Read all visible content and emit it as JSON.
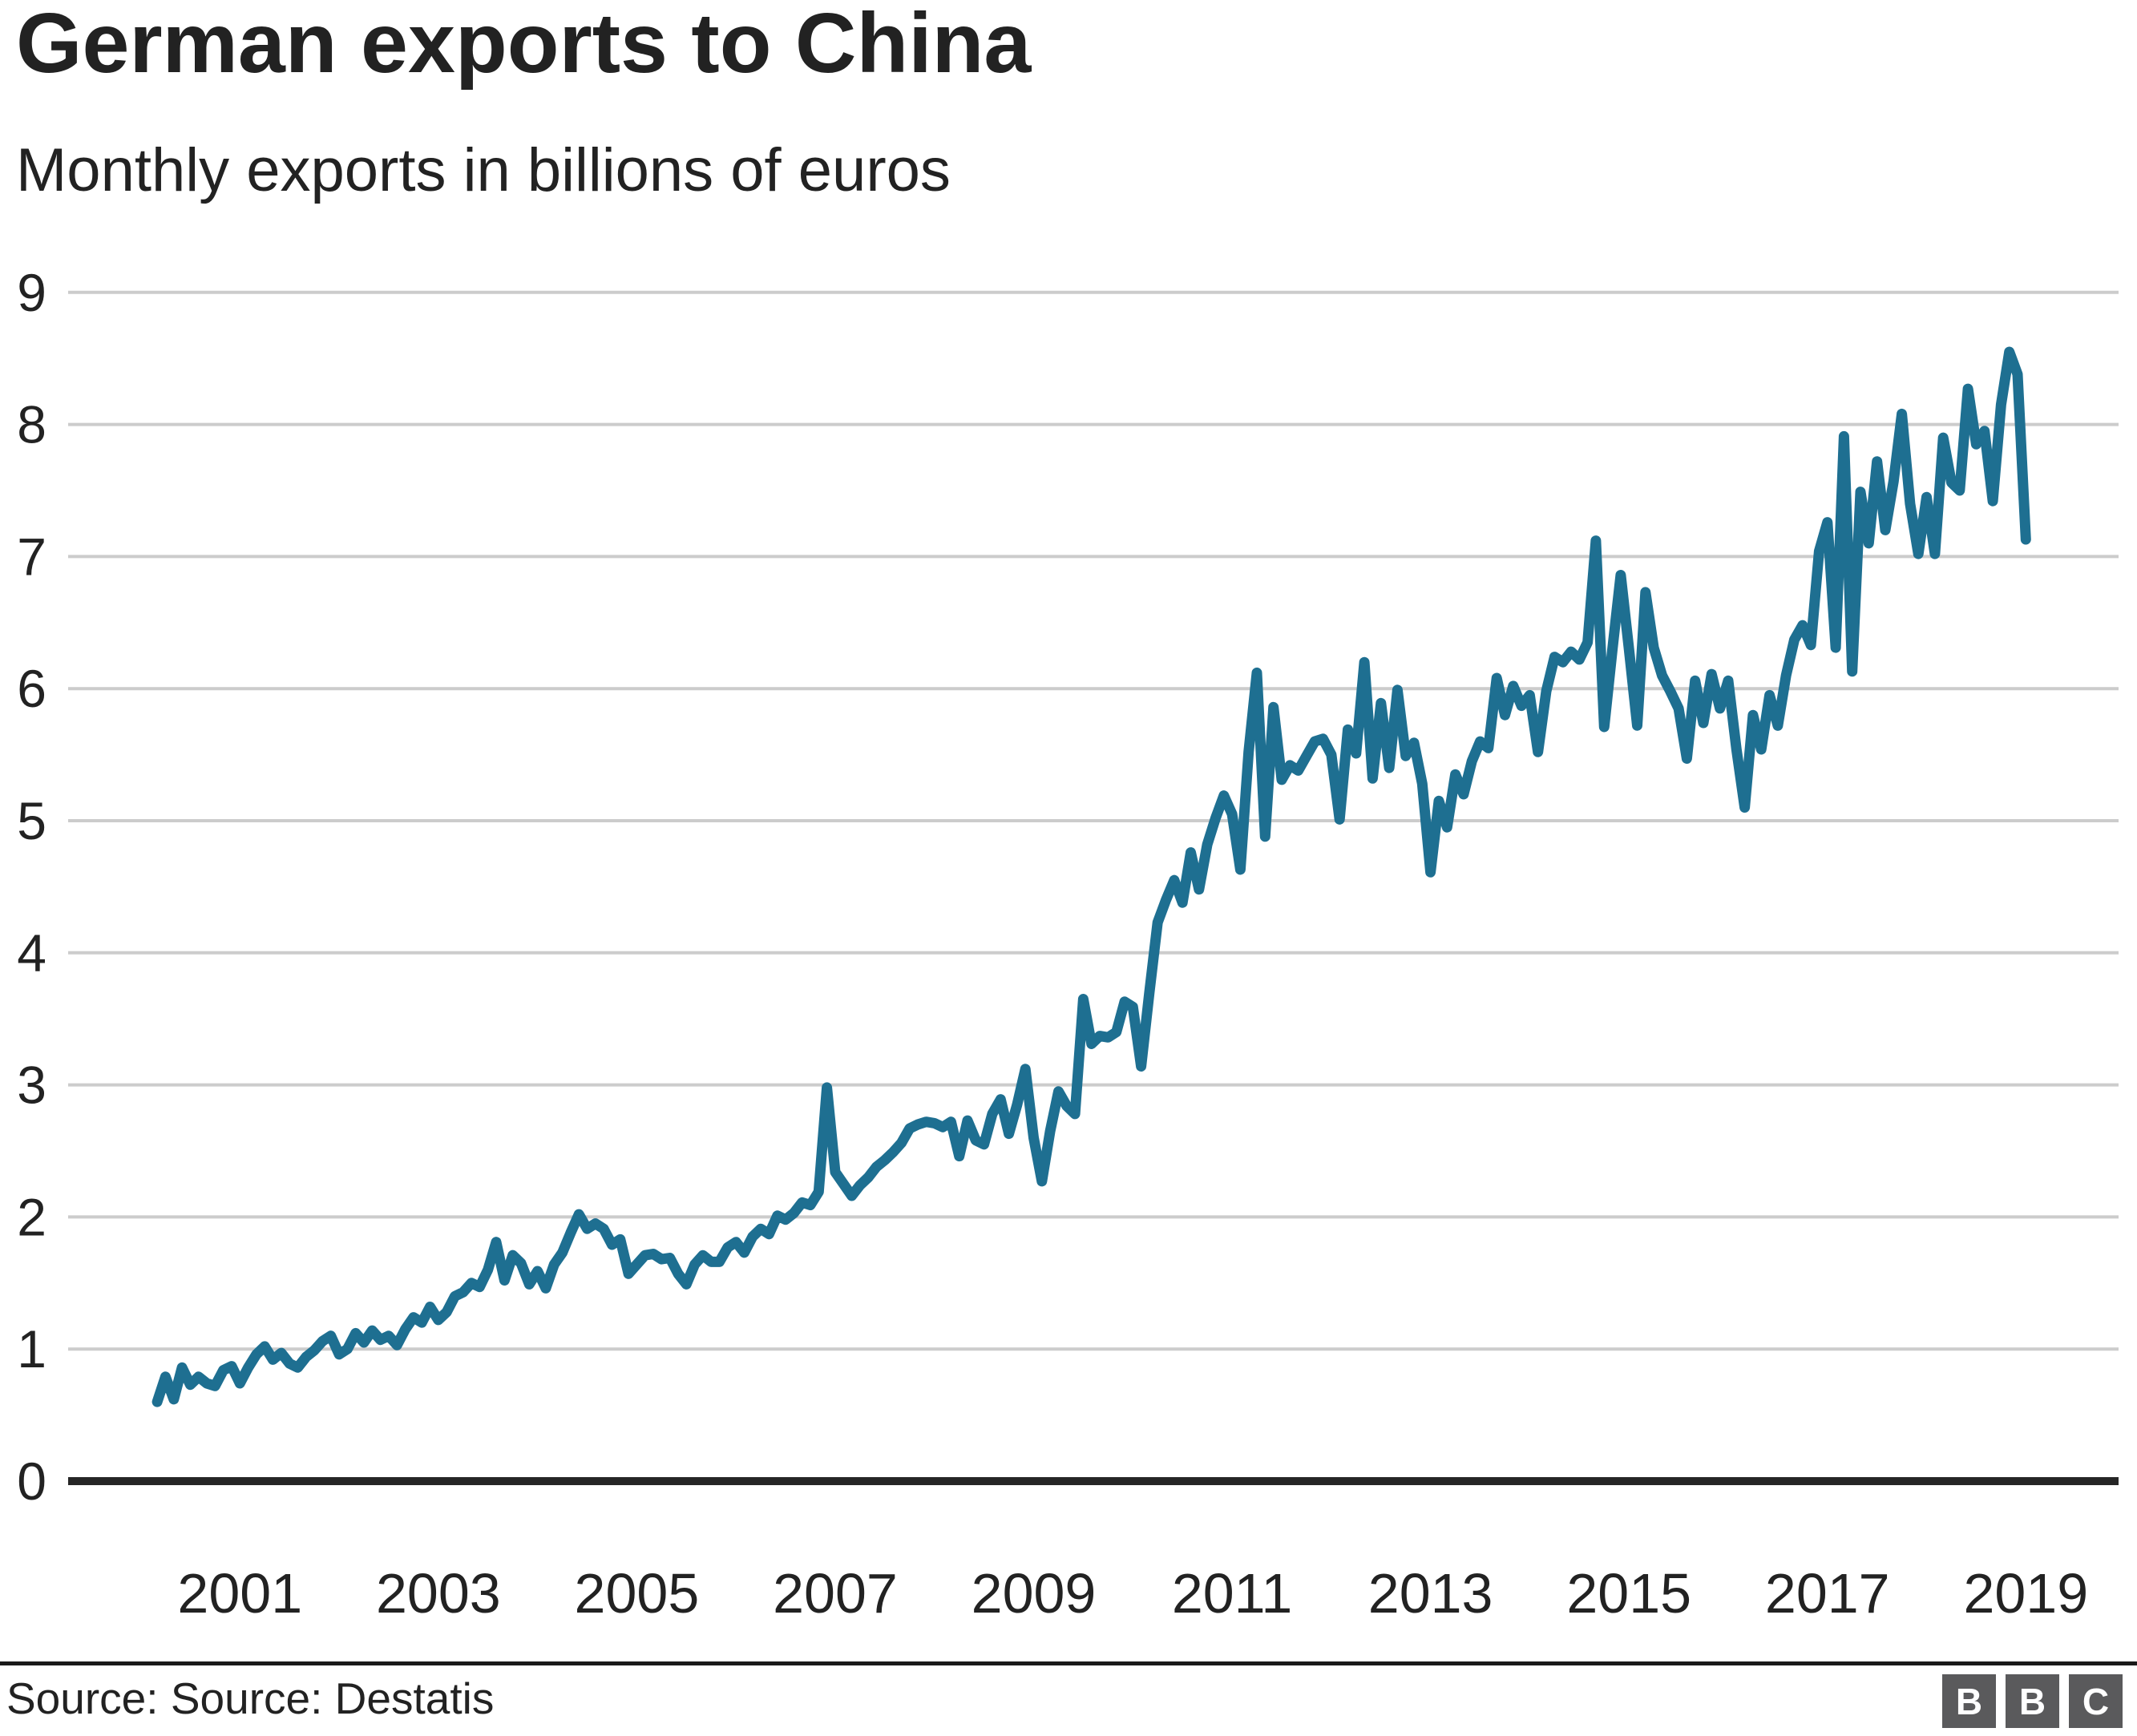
{
  "header": {
    "title": "German exports to China",
    "subtitle": "Monthly exports in billions of euros"
  },
  "footer": {
    "source_label": "Source: Source: Destatis",
    "logo_letters": [
      "B",
      "B",
      "C"
    ]
  },
  "colors": {
    "accent": "#1e6f91",
    "grid": "#cccccc",
    "axis": "#262626",
    "text": "#222222",
    "logo_bg": "#5a5a5c"
  },
  "chart_data": {
    "type": "line",
    "title": "German exports to China",
    "subtitle": "Monthly exports in billions of euros",
    "ylabel": "billions of euros",
    "xlabel": "",
    "grid": "horizontal",
    "legend": "none",
    "ylim": [
      0,
      9
    ],
    "y_ticks": [
      0,
      1,
      2,
      3,
      4,
      5,
      6,
      7,
      8,
      9
    ],
    "x_tick_labels": [
      "2001",
      "2003",
      "2005",
      "2007",
      "2009",
      "2011",
      "2013",
      "2015",
      "2017",
      "2019"
    ],
    "x_start": "2000-03",
    "x_end": "2019-01",
    "x_frequency": "monthly",
    "line_color": "#1e6f91",
    "series": [
      {
        "name": "German monthly exports to China (bn EUR)",
        "values": [
          0.6,
          0.79,
          0.62,
          0.86,
          0.73,
          0.79,
          0.74,
          0.72,
          0.84,
          0.87,
          0.74,
          0.86,
          0.96,
          1.02,
          0.92,
          0.97,
          0.89,
          0.86,
          0.94,
          0.99,
          1.06,
          1.1,
          0.96,
          1.0,
          1.12,
          1.05,
          1.14,
          1.07,
          1.1,
          1.03,
          1.15,
          1.24,
          1.2,
          1.32,
          1.22,
          1.28,
          1.4,
          1.43,
          1.5,
          1.47,
          1.6,
          1.81,
          1.52,
          1.71,
          1.65,
          1.49,
          1.59,
          1.46,
          1.64,
          1.73,
          1.88,
          2.02,
          1.91,
          1.95,
          1.91,
          1.79,
          1.83,
          1.57,
          1.64,
          1.71,
          1.72,
          1.68,
          1.69,
          1.57,
          1.49,
          1.64,
          1.71,
          1.66,
          1.66,
          1.77,
          1.81,
          1.73,
          1.85,
          1.91,
          1.87,
          2.01,
          1.98,
          2.03,
          2.11,
          2.09,
          2.19,
          2.98,
          2.34,
          2.25,
          2.16,
          2.24,
          2.3,
          2.38,
          2.43,
          2.49,
          2.56,
          2.67,
          2.7,
          2.72,
          2.71,
          2.68,
          2.72,
          2.46,
          2.73,
          2.58,
          2.55,
          2.78,
          2.89,
          2.63,
          2.85,
          3.12,
          2.6,
          2.27,
          2.65,
          2.95,
          2.84,
          2.78,
          3.65,
          3.31,
          3.37,
          3.36,
          3.4,
          3.63,
          3.59,
          3.14,
          3.7,
          4.23,
          4.4,
          4.55,
          4.38,
          4.76,
          4.48,
          4.82,
          5.02,
          5.19,
          5.05,
          4.63,
          5.52,
          6.12,
          4.88,
          5.86,
          5.31,
          5.42,
          5.38,
          5.49,
          5.6,
          5.62,
          5.5,
          5.01,
          5.69,
          5.51,
          6.2,
          5.32,
          5.89,
          5.4,
          5.99,
          5.49,
          5.59,
          5.28,
          4.61,
          5.15,
          4.95,
          5.35,
          5.2,
          5.45,
          5.6,
          5.55,
          6.08,
          5.8,
          6.02,
          5.87,
          5.95,
          5.52,
          5.98,
          6.24,
          6.2,
          6.28,
          6.22,
          6.35,
          7.12,
          5.71,
          6.3,
          6.86,
          6.3,
          5.72,
          6.73,
          6.31,
          6.1,
          5.98,
          5.85,
          5.47,
          6.06,
          5.74,
          6.11,
          5.85,
          6.06,
          5.54,
          5.1,
          5.8,
          5.54,
          5.95,
          5.72,
          6.1,
          6.37,
          6.48,
          6.33,
          7.04,
          7.26,
          6.31,
          7.91,
          6.13,
          7.49,
          7.1,
          7.72,
          7.2,
          7.57,
          8.08,
          7.4,
          7.02,
          7.45,
          7.02,
          7.9,
          7.56,
          7.5,
          8.27,
          7.85,
          7.95,
          7.42,
          8.15,
          8.55,
          8.38,
          7.13
        ]
      }
    ]
  }
}
